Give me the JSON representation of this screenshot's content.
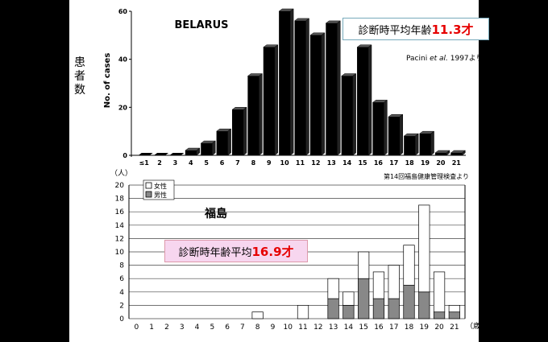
{
  "side_label": [
    "患",
    "者",
    "数"
  ],
  "annotations": {
    "belarus_avg_prefix": "診断時平均年齢",
    "belarus_avg_value": "11.3才",
    "fukushima_avg_prefix": "診断時年齢平均",
    "fukushima_avg_value": "16.9才",
    "source_pacini_a": "Pacini ",
    "source_pacini_b": "et al.",
    "source_pacini_c": " 1997より",
    "source_fukushima": "第14回福島健康管理検査より"
  },
  "colors": {
    "male": "#888888",
    "female": "#ffffff",
    "bar": "#000000",
    "highlight": "#e60000",
    "box2_bg": "#f7d6ef"
  },
  "chart_data": [
    {
      "type": "bar",
      "title": "BELARUS",
      "ylabel": "No. of cases",
      "ylim": [
        0,
        60
      ],
      "yticks": [
        0,
        20,
        40,
        60
      ],
      "categories": [
        "≤1",
        "2",
        "3",
        "4",
        "5",
        "6",
        "7",
        "8",
        "9",
        "10",
        "11",
        "12",
        "13",
        "14",
        "15",
        "16",
        "17",
        "18",
        "19",
        "20",
        "21"
      ],
      "values": [
        0,
        0,
        0,
        2,
        5,
        10,
        19,
        33,
        45,
        60,
        56,
        50,
        55,
        33,
        45,
        22,
        16,
        8,
        9,
        1,
        1
      ]
    },
    {
      "type": "bar",
      "title": "福島",
      "ylabel": "（人）",
      "xlabel": "（歳）",
      "ylim": [
        0,
        20
      ],
      "yticks": [
        0,
        2,
        4,
        6,
        8,
        10,
        12,
        14,
        16,
        18,
        20
      ],
      "categories": [
        "0",
        "1",
        "2",
        "3",
        "4",
        "5",
        "6",
        "7",
        "8",
        "9",
        "10",
        "11",
        "12",
        "13",
        "14",
        "15",
        "16",
        "17",
        "18",
        "19",
        "20",
        "21"
      ],
      "series": [
        {
          "name": "男性",
          "values": [
            0,
            0,
            0,
            0,
            0,
            0,
            0,
            0,
            0,
            0,
            0,
            0,
            0,
            3,
            2,
            6,
            3,
            3,
            5,
            4,
            1,
            1
          ]
        },
        {
          "name": "女性",
          "values": [
            0,
            0,
            0,
            0,
            0,
            0,
            0,
            0,
            1,
            0,
            0,
            2,
            0,
            3,
            2,
            4,
            4,
            5,
            6,
            13,
            6,
            1
          ]
        }
      ]
    }
  ]
}
